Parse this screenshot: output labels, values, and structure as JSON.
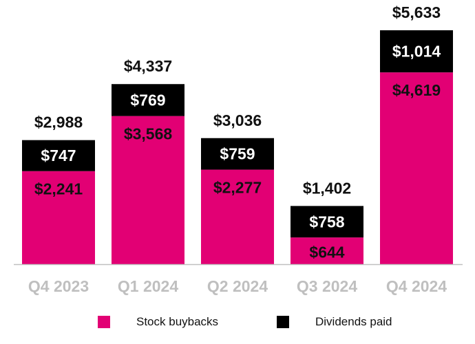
{
  "chart_data": {
    "type": "stacked-bar",
    "categories": [
      "Q4 2023",
      "Q1 2024",
      "Q2 2024",
      "Q3 2024",
      "Q4 2024"
    ],
    "series": [
      {
        "name": "Stock buybacks",
        "color": "#e20074",
        "values": [
          2241,
          3568,
          2277,
          644,
          4619
        ],
        "labels": [
          "$2,241",
          "$3,568",
          "$2,277",
          "$644",
          "$4,619"
        ]
      },
      {
        "name": "Dividends paid",
        "color": "#000000",
        "values": [
          747,
          769,
          759,
          758,
          1014
        ],
        "labels": [
          "$747",
          "$769",
          "$759",
          "$758",
          "$1,014"
        ]
      }
    ],
    "totals": [
      2988,
      4337,
      3036,
      1402,
      5633
    ],
    "total_labels": [
      "$2,988",
      "$4,337",
      "$3,036",
      "$1,402",
      "$5,633"
    ],
    "ylim": [
      0,
      6000
    ],
    "grid": false,
    "legend_position": "bottom"
  },
  "colors": {
    "buybacks": "#e20074",
    "dividends": "#000000",
    "tick_label": "#bfbfbf",
    "axis": "#bfbfbf"
  },
  "legend": {
    "buybacks_label": "Stock buybacks",
    "dividends_label": "Dividends paid"
  }
}
